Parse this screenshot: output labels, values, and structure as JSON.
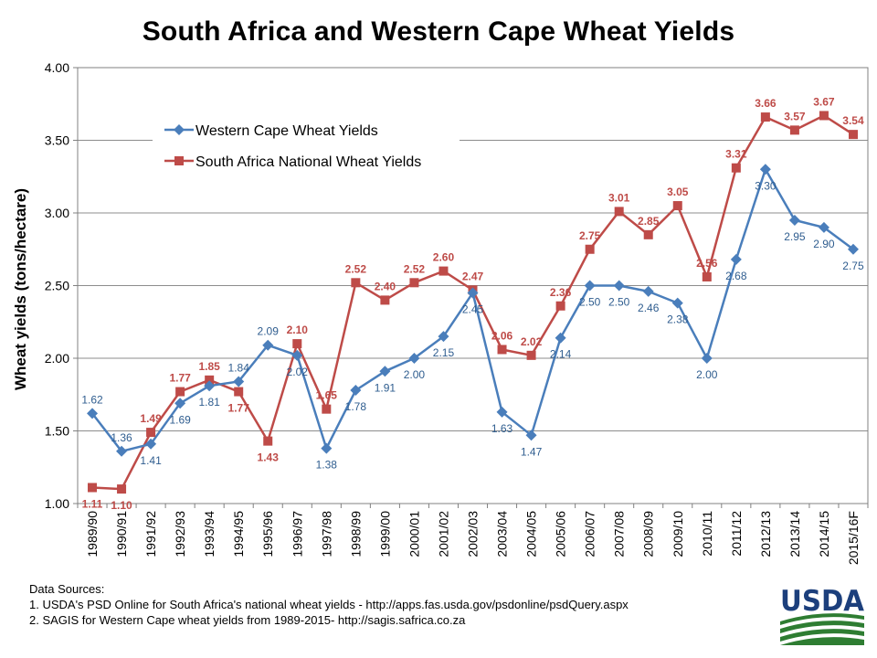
{
  "title": "South Africa and Western Cape Wheat Yields",
  "chart_data": {
    "type": "line",
    "title": "South Africa and Western Cape Wheat Yields",
    "xlabel": "",
    "ylabel": "Wheat yields (tons/hectare)",
    "ylim": [
      1.0,
      4.0
    ],
    "yticks": [
      "1.00",
      "1.50",
      "2.00",
      "2.50",
      "3.00",
      "3.50",
      "4.00"
    ],
    "grid": true,
    "legend_position": "top-left",
    "categories": [
      "1989/90",
      "1990/91",
      "1991/92",
      "1992/93",
      "1993/94",
      "1994/95",
      "1995/96",
      "1996/97",
      "1997/98",
      "1998/99",
      "1999/00",
      "2000/01",
      "2001/02",
      "2002/03",
      "2003/04",
      "2004/05",
      "2005/06",
      "2006/07",
      "2007/08",
      "2008/09",
      "2009/10",
      "2010/11",
      "2011/12",
      "2012/13",
      "2013/14",
      "2014/15",
      "2015/16F"
    ],
    "series": [
      {
        "name": "Western Cape Wheat Yields",
        "color": "#4a7ebb",
        "marker": "diamond",
        "values": [
          1.62,
          1.36,
          1.41,
          1.69,
          1.81,
          1.84,
          2.09,
          2.02,
          1.38,
          1.78,
          1.91,
          2.0,
          2.15,
          2.45,
          1.63,
          1.47,
          2.14,
          2.5,
          2.5,
          2.46,
          2.38,
          2.0,
          2.68,
          3.3,
          2.95,
          2.9,
          2.75
        ],
        "labels": [
          "1.62",
          "1.36",
          "1.41",
          "1.69",
          "1.81",
          "1.84",
          "2.09",
          "2.02",
          "1.38",
          "1.78",
          "1.91",
          "2.00",
          "2.15",
          "2.45",
          "1.63",
          "1.47",
          "2.14",
          "2.50",
          "2.50",
          "2.46",
          "2.38",
          "2.00",
          "2.68",
          "3.30",
          "2.95",
          "2.90",
          "2.75"
        ]
      },
      {
        "name": "South Africa National Wheat Yields",
        "color": "#be4b48",
        "marker": "square",
        "values": [
          1.11,
          1.1,
          1.49,
          1.77,
          1.85,
          1.77,
          1.43,
          2.1,
          1.65,
          2.52,
          2.4,
          2.52,
          2.6,
          2.47,
          2.06,
          2.02,
          2.36,
          2.75,
          3.01,
          2.85,
          3.05,
          2.56,
          3.31,
          3.66,
          3.57,
          3.67,
          3.54
        ],
        "labels": [
          "1.11",
          "1.10",
          "1.49",
          "1.77",
          "1.85",
          "1.77",
          "1.43",
          "2.10",
          "1.65",
          "2.52",
          "2.40",
          "2.52",
          "2.60",
          "2.47",
          "2.06",
          "2.02",
          "2.36",
          "2.75",
          "3.01",
          "2.85",
          "3.05",
          "2.56",
          "3.31",
          "3.66",
          "3.57",
          "3.67",
          "3.54"
        ]
      }
    ]
  },
  "sources": {
    "heading": "Data Sources:",
    "line1": "1. USDA's PSD Online for South Africa's national wheat yields - http://apps.fas.usda.gov/psdonline/psdQuery.aspx",
    "line2": "2. SAGIS for Western Cape wheat yields from 1989-2015- http://sagis.safrica.co.za"
  },
  "logo": {
    "text": "USDA",
    "text_color": "#1c3f7c",
    "green": "#2e7d32"
  }
}
